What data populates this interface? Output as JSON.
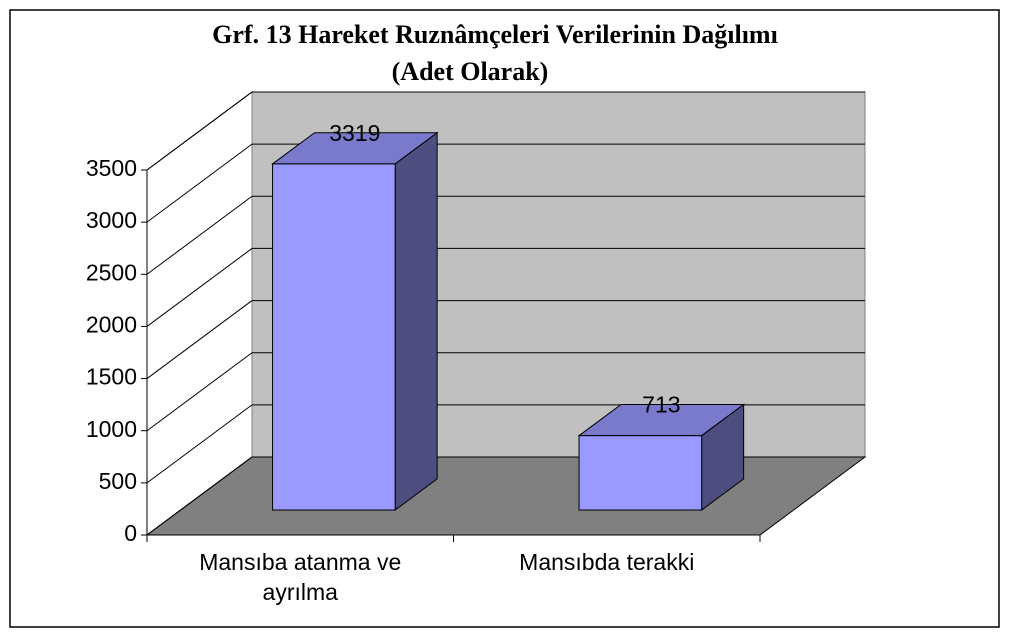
{
  "chart_data": {
    "type": "bar3d",
    "title": "Grf. 13  Hareket Ruznâmçeleri Verilerinin Dağılımı",
    "subtitle": "(Adet Olarak)",
    "categories": [
      "Mansıba atanma ve ayrılma",
      "Mansıbda terakki"
    ],
    "values": [
      3319,
      713
    ],
    "color": "#9999ff",
    "ylim": [
      0,
      3500
    ],
    "yticks": [
      0,
      500,
      1000,
      1500,
      2000,
      2500,
      3000,
      3500
    ],
    "grid": true
  }
}
